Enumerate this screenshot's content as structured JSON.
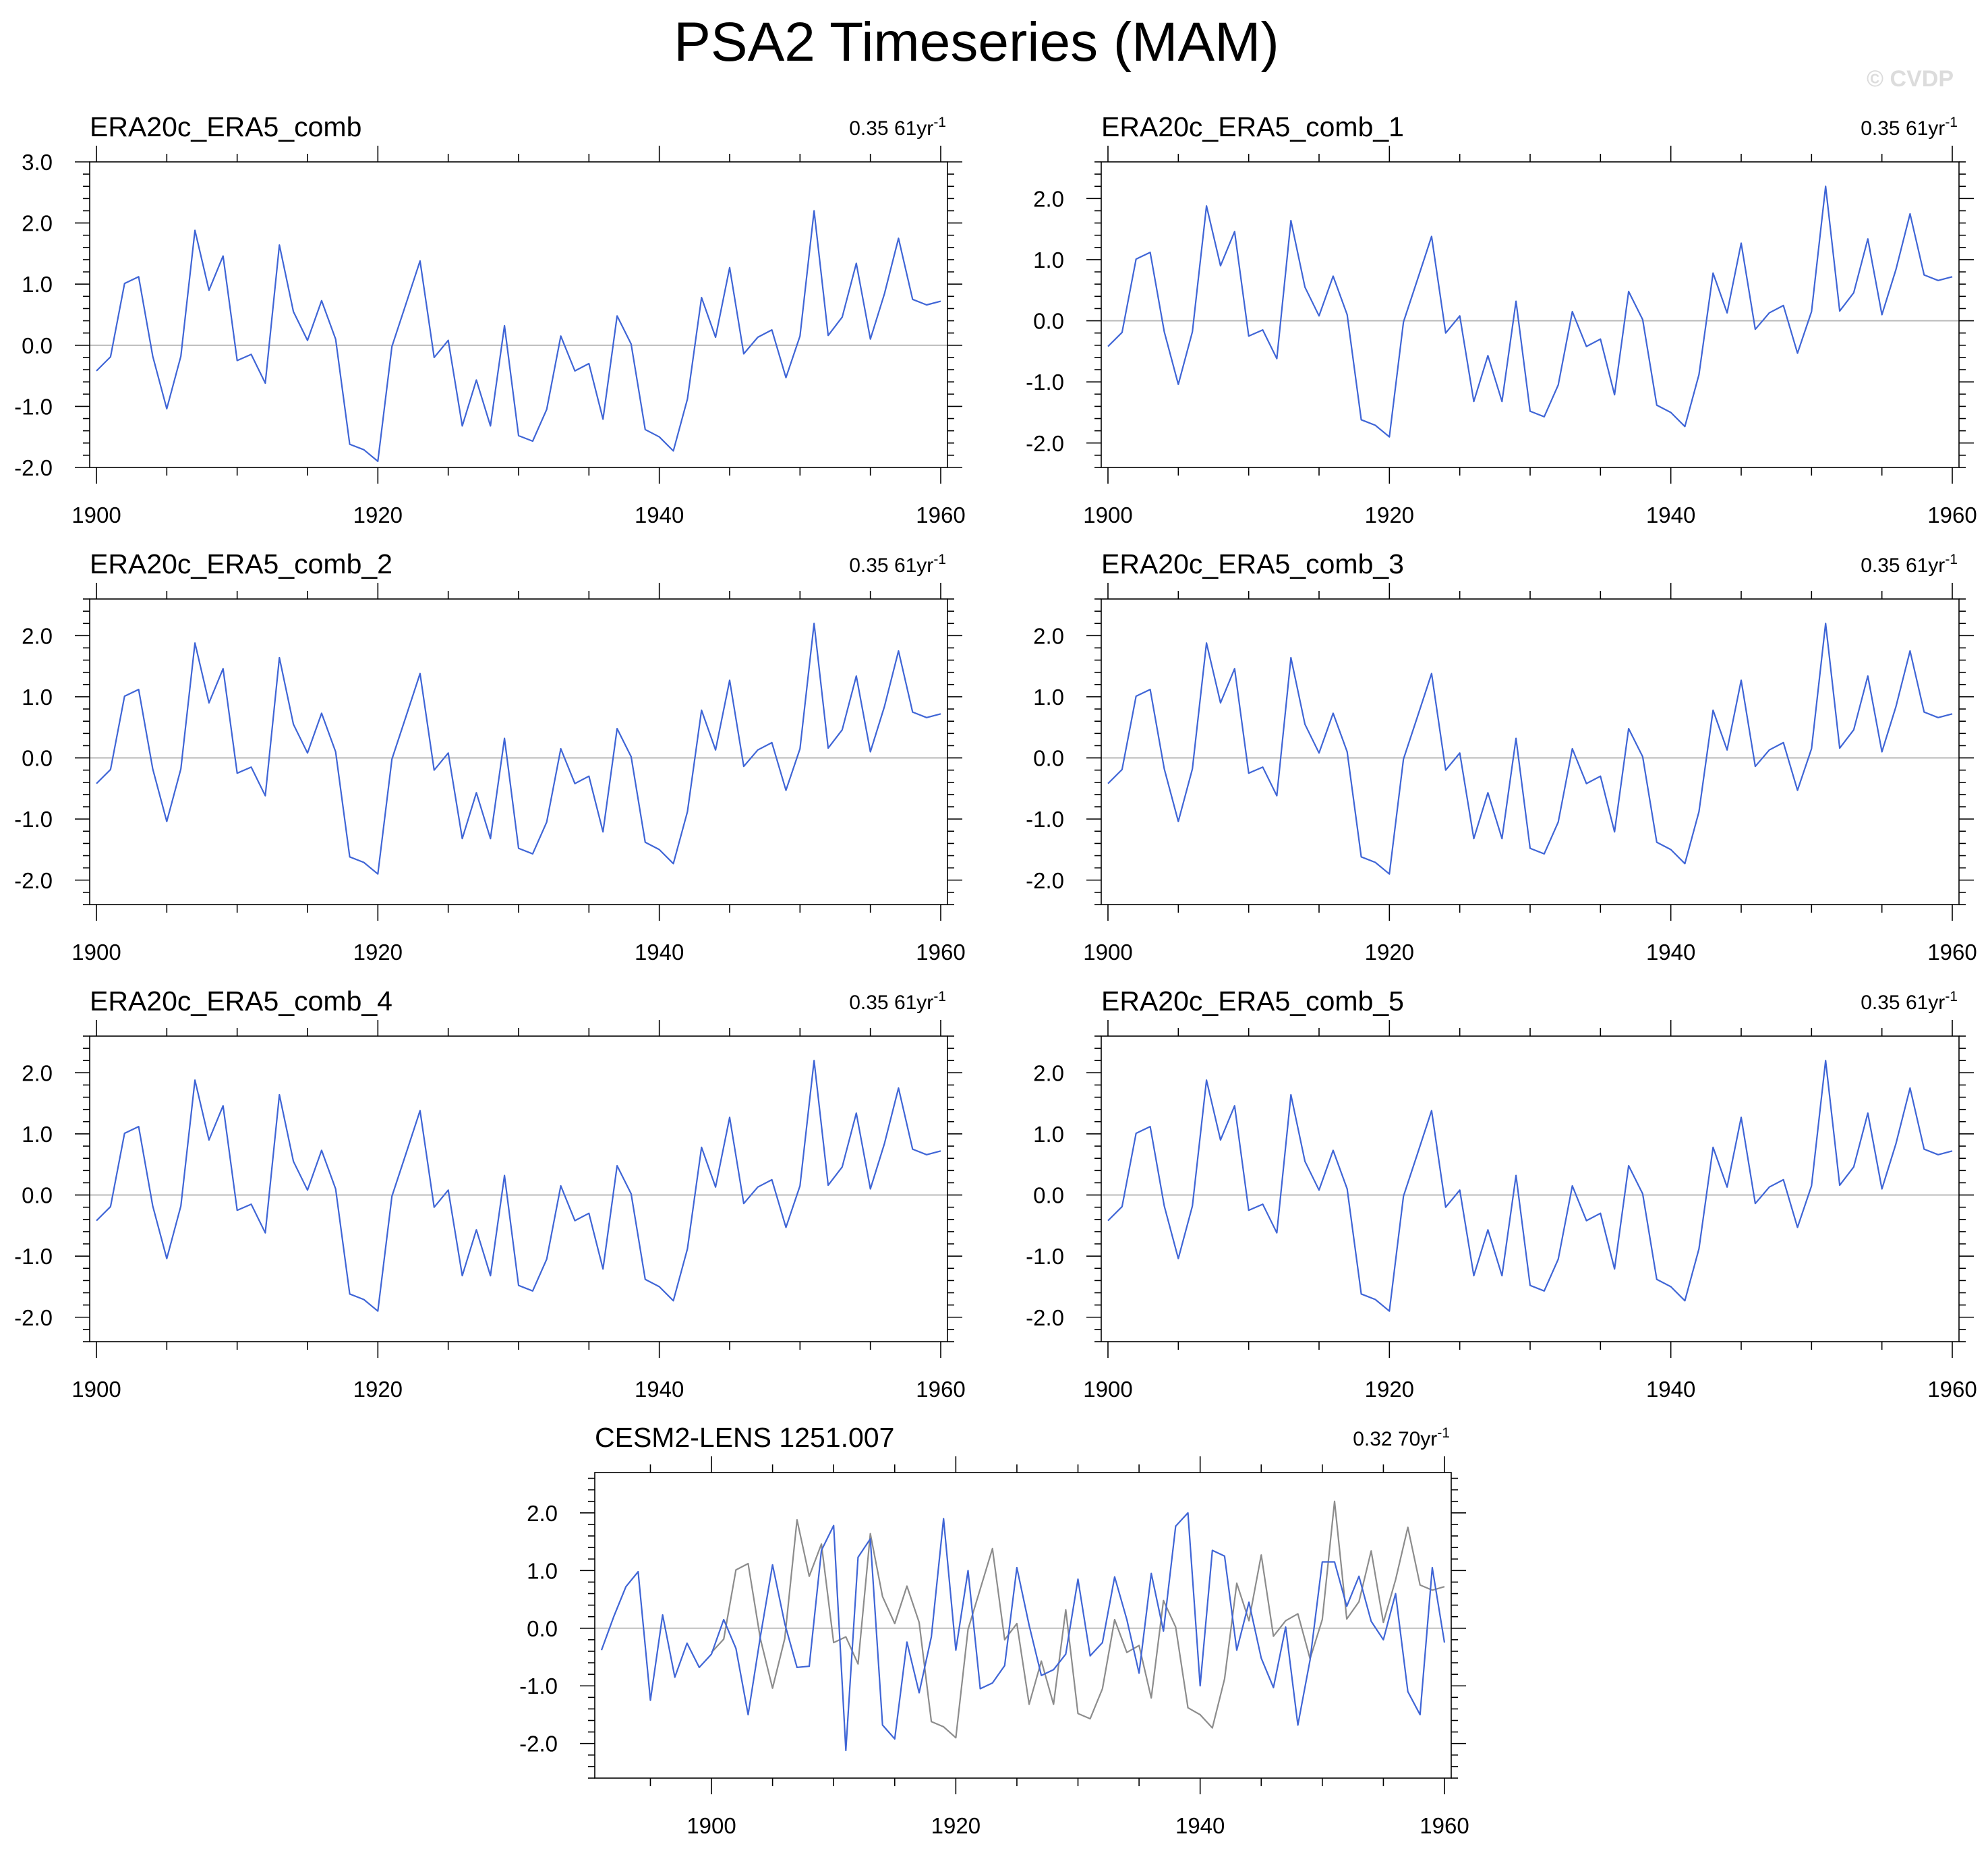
{
  "figure": {
    "title": "PSA2 Timeseries (MAM)",
    "watermark": "© CVDP"
  },
  "colors": {
    "observed_series": "#3f65d6",
    "reference_series": "#8c8c8c",
    "zero_line": "#b4b4b4"
  },
  "chart_data": [
    {
      "type": "line",
      "title": "ERA20c_ERA5_comb",
      "trend": {
        "value": "0.35",
        "period": "61yr",
        "exponent": "-1"
      },
      "xlim": [
        1900,
        1960
      ],
      "ylim": [
        -2,
        3
      ],
      "xticks": [
        "1900",
        "1920",
        "1940",
        "1960"
      ],
      "yticks": [
        "3.0",
        "2.0",
        "1.0",
        "0.0",
        "-1.0",
        "-2.0"
      ],
      "grid": false,
      "x": [
        1900,
        1901,
        1902,
        1903,
        1904,
        1905,
        1906,
        1907,
        1908,
        1909,
        1910,
        1911,
        1912,
        1913,
        1914,
        1915,
        1916,
        1917,
        1918,
        1919,
        1920,
        1921,
        1922,
        1923,
        1924,
        1925,
        1926,
        1927,
        1928,
        1929,
        1930,
        1931,
        1932,
        1933,
        1934,
        1935,
        1936,
        1937,
        1938,
        1939,
        1940,
        1941,
        1942,
        1943,
        1944,
        1945,
        1946,
        1947,
        1948,
        1949,
        1950,
        1951,
        1952,
        1953,
        1954,
        1955,
        1956,
        1957,
        1958,
        1959,
        1960
      ],
      "series": [
        {
          "values": [
            -0.42,
            -0.19,
            1.01,
            1.12,
            -0.18,
            -1.04,
            -0.18,
            1.88,
            0.9,
            1.46,
            -0.25,
            -0.15,
            -0.62,
            1.64,
            0.55,
            0.08,
            0.73,
            0.1,
            -1.62,
            -1.71,
            -1.9,
            -0.02,
            0.68,
            1.38,
            -0.2,
            0.08,
            -1.32,
            -0.57,
            -1.32,
            0.32,
            -1.48,
            -1.57,
            -1.05,
            0.15,
            -0.42,
            -0.3,
            -1.21,
            0.48,
            0.02,
            -1.38,
            -1.5,
            -1.73,
            -0.88,
            0.78,
            0.13,
            1.27,
            -0.14,
            0.13,
            0.25,
            -0.53,
            0.15,
            2.2,
            0.16,
            0.46,
            1.34,
            0.1,
            0.84,
            1.75,
            0.75,
            0.66,
            0.72
          ]
        }
      ]
    },
    {
      "type": "line",
      "title": "ERA20c_ERA5_comb_1",
      "trend": {
        "value": "0.35",
        "period": "61yr",
        "exponent": "-1"
      },
      "xlim": [
        1900,
        1960
      ],
      "ylim": [
        -2.4,
        2.6
      ],
      "xticks": [
        "1900",
        "1920",
        "1940",
        "1960"
      ],
      "yticks": [
        "2.0",
        "1.0",
        "0.0",
        "-1.0",
        "-2.0"
      ],
      "grid": false,
      "x": [
        1900,
        1901,
        1902,
        1903,
        1904,
        1905,
        1906,
        1907,
        1908,
        1909,
        1910,
        1911,
        1912,
        1913,
        1914,
        1915,
        1916,
        1917,
        1918,
        1919,
        1920,
        1921,
        1922,
        1923,
        1924,
        1925,
        1926,
        1927,
        1928,
        1929,
        1930,
        1931,
        1932,
        1933,
        1934,
        1935,
        1936,
        1937,
        1938,
        1939,
        1940,
        1941,
        1942,
        1943,
        1944,
        1945,
        1946,
        1947,
        1948,
        1949,
        1950,
        1951,
        1952,
        1953,
        1954,
        1955,
        1956,
        1957,
        1958,
        1959,
        1960
      ],
      "series": [
        {
          "values": [
            -0.42,
            -0.19,
            1.01,
            1.12,
            -0.18,
            -1.04,
            -0.18,
            1.88,
            0.9,
            1.46,
            -0.25,
            -0.15,
            -0.62,
            1.64,
            0.55,
            0.08,
            0.73,
            0.1,
            -1.62,
            -1.71,
            -1.9,
            -0.02,
            0.68,
            1.38,
            -0.2,
            0.08,
            -1.32,
            -0.57,
            -1.32,
            0.32,
            -1.48,
            -1.57,
            -1.05,
            0.15,
            -0.42,
            -0.3,
            -1.21,
            0.48,
            0.02,
            -1.38,
            -1.5,
            -1.73,
            -0.88,
            0.78,
            0.13,
            1.27,
            -0.14,
            0.13,
            0.25,
            -0.53,
            0.15,
            2.2,
            0.16,
            0.46,
            1.34,
            0.1,
            0.84,
            1.75,
            0.75,
            0.66,
            0.72
          ]
        }
      ]
    },
    {
      "type": "line",
      "title": "ERA20c_ERA5_comb_2",
      "trend": {
        "value": "0.35",
        "period": "61yr",
        "exponent": "-1"
      },
      "xlim": [
        1900,
        1960
      ],
      "ylim": [
        -2.4,
        2.6
      ],
      "xticks": [
        "1900",
        "1920",
        "1940",
        "1960"
      ],
      "yticks": [
        "2.0",
        "1.0",
        "0.0",
        "-1.0",
        "-2.0"
      ],
      "grid": false,
      "x": [
        1900,
        1901,
        1902,
        1903,
        1904,
        1905,
        1906,
        1907,
        1908,
        1909,
        1910,
        1911,
        1912,
        1913,
        1914,
        1915,
        1916,
        1917,
        1918,
        1919,
        1920,
        1921,
        1922,
        1923,
        1924,
        1925,
        1926,
        1927,
        1928,
        1929,
        1930,
        1931,
        1932,
        1933,
        1934,
        1935,
        1936,
        1937,
        1938,
        1939,
        1940,
        1941,
        1942,
        1943,
        1944,
        1945,
        1946,
        1947,
        1948,
        1949,
        1950,
        1951,
        1952,
        1953,
        1954,
        1955,
        1956,
        1957,
        1958,
        1959,
        1960
      ],
      "series": [
        {
          "values": [
            -0.42,
            -0.19,
            1.01,
            1.12,
            -0.18,
            -1.04,
            -0.18,
            1.88,
            0.9,
            1.46,
            -0.25,
            -0.15,
            -0.62,
            1.64,
            0.55,
            0.08,
            0.73,
            0.1,
            -1.62,
            -1.71,
            -1.9,
            -0.02,
            0.68,
            1.38,
            -0.2,
            0.08,
            -1.32,
            -0.57,
            -1.32,
            0.32,
            -1.48,
            -1.57,
            -1.05,
            0.15,
            -0.42,
            -0.3,
            -1.21,
            0.48,
            0.02,
            -1.38,
            -1.5,
            -1.73,
            -0.88,
            0.78,
            0.13,
            1.27,
            -0.14,
            0.13,
            0.25,
            -0.53,
            0.15,
            2.2,
            0.16,
            0.46,
            1.34,
            0.1,
            0.84,
            1.75,
            0.75,
            0.66,
            0.72
          ]
        }
      ]
    },
    {
      "type": "line",
      "title": "ERA20c_ERA5_comb_3",
      "trend": {
        "value": "0.35",
        "period": "61yr",
        "exponent": "-1"
      },
      "xlim": [
        1900,
        1960
      ],
      "ylim": [
        -2.4,
        2.6
      ],
      "xticks": [
        "1900",
        "1920",
        "1940",
        "1960"
      ],
      "yticks": [
        "2.0",
        "1.0",
        "0.0",
        "-1.0",
        "-2.0"
      ],
      "grid": false,
      "x": [
        1900,
        1901,
        1902,
        1903,
        1904,
        1905,
        1906,
        1907,
        1908,
        1909,
        1910,
        1911,
        1912,
        1913,
        1914,
        1915,
        1916,
        1917,
        1918,
        1919,
        1920,
        1921,
        1922,
        1923,
        1924,
        1925,
        1926,
        1927,
        1928,
        1929,
        1930,
        1931,
        1932,
        1933,
        1934,
        1935,
        1936,
        1937,
        1938,
        1939,
        1940,
        1941,
        1942,
        1943,
        1944,
        1945,
        1946,
        1947,
        1948,
        1949,
        1950,
        1951,
        1952,
        1953,
        1954,
        1955,
        1956,
        1957,
        1958,
        1959,
        1960
      ],
      "series": [
        {
          "values": [
            -0.42,
            -0.19,
            1.01,
            1.12,
            -0.18,
            -1.04,
            -0.18,
            1.88,
            0.9,
            1.46,
            -0.25,
            -0.15,
            -0.62,
            1.64,
            0.55,
            0.08,
            0.73,
            0.1,
            -1.62,
            -1.71,
            -1.9,
            -0.02,
            0.68,
            1.38,
            -0.2,
            0.08,
            -1.32,
            -0.57,
            -1.32,
            0.32,
            -1.48,
            -1.57,
            -1.05,
            0.15,
            -0.42,
            -0.3,
            -1.21,
            0.48,
            0.02,
            -1.38,
            -1.5,
            -1.73,
            -0.88,
            0.78,
            0.13,
            1.27,
            -0.14,
            0.13,
            0.25,
            -0.53,
            0.15,
            2.2,
            0.16,
            0.46,
            1.34,
            0.1,
            0.84,
            1.75,
            0.75,
            0.66,
            0.72
          ]
        }
      ]
    },
    {
      "type": "line",
      "title": "ERA20c_ERA5_comb_4",
      "trend": {
        "value": "0.35",
        "period": "61yr",
        "exponent": "-1"
      },
      "xlim": [
        1900,
        1960
      ],
      "ylim": [
        -2.4,
        2.6
      ],
      "xticks": [
        "1900",
        "1920",
        "1940",
        "1960"
      ],
      "yticks": [
        "2.0",
        "1.0",
        "0.0",
        "-1.0",
        "-2.0"
      ],
      "grid": false,
      "x": [
        1900,
        1901,
        1902,
        1903,
        1904,
        1905,
        1906,
        1907,
        1908,
        1909,
        1910,
        1911,
        1912,
        1913,
        1914,
        1915,
        1916,
        1917,
        1918,
        1919,
        1920,
        1921,
        1922,
        1923,
        1924,
        1925,
        1926,
        1927,
        1928,
        1929,
        1930,
        1931,
        1932,
        1933,
        1934,
        1935,
        1936,
        1937,
        1938,
        1939,
        1940,
        1941,
        1942,
        1943,
        1944,
        1945,
        1946,
        1947,
        1948,
        1949,
        1950,
        1951,
        1952,
        1953,
        1954,
        1955,
        1956,
        1957,
        1958,
        1959,
        1960
      ],
      "series": [
        {
          "values": [
            -0.42,
            -0.19,
            1.01,
            1.12,
            -0.18,
            -1.04,
            -0.18,
            1.88,
            0.9,
            1.46,
            -0.25,
            -0.15,
            -0.62,
            1.64,
            0.55,
            0.08,
            0.73,
            0.1,
            -1.62,
            -1.71,
            -1.9,
            -0.02,
            0.68,
            1.38,
            -0.2,
            0.08,
            -1.32,
            -0.57,
            -1.32,
            0.32,
            -1.48,
            -1.57,
            -1.05,
            0.15,
            -0.42,
            -0.3,
            -1.21,
            0.48,
            0.02,
            -1.38,
            -1.5,
            -1.73,
            -0.88,
            0.78,
            0.13,
            1.27,
            -0.14,
            0.13,
            0.25,
            -0.53,
            0.15,
            2.2,
            0.16,
            0.46,
            1.34,
            0.1,
            0.84,
            1.75,
            0.75,
            0.66,
            0.72
          ]
        }
      ]
    },
    {
      "type": "line",
      "title": "ERA20c_ERA5_comb_5",
      "trend": {
        "value": "0.35",
        "period": "61yr",
        "exponent": "-1"
      },
      "xlim": [
        1900,
        1960
      ],
      "ylim": [
        -2.4,
        2.6
      ],
      "xticks": [
        "1900",
        "1920",
        "1940",
        "1960"
      ],
      "yticks": [
        "2.0",
        "1.0",
        "0.0",
        "-1.0",
        "-2.0"
      ],
      "grid": false,
      "x": [
        1900,
        1901,
        1902,
        1903,
        1904,
        1905,
        1906,
        1907,
        1908,
        1909,
        1910,
        1911,
        1912,
        1913,
        1914,
        1915,
        1916,
        1917,
        1918,
        1919,
        1920,
        1921,
        1922,
        1923,
        1924,
        1925,
        1926,
        1927,
        1928,
        1929,
        1930,
        1931,
        1932,
        1933,
        1934,
        1935,
        1936,
        1937,
        1938,
        1939,
        1940,
        1941,
        1942,
        1943,
        1944,
        1945,
        1946,
        1947,
        1948,
        1949,
        1950,
        1951,
        1952,
        1953,
        1954,
        1955,
        1956,
        1957,
        1958,
        1959,
        1960
      ],
      "series": [
        {
          "values": [
            -0.42,
            -0.19,
            1.01,
            1.12,
            -0.18,
            -1.04,
            -0.18,
            1.88,
            0.9,
            1.46,
            -0.25,
            -0.15,
            -0.62,
            1.64,
            0.55,
            0.08,
            0.73,
            0.1,
            -1.62,
            -1.71,
            -1.9,
            -0.02,
            0.68,
            1.38,
            -0.2,
            0.08,
            -1.32,
            -0.57,
            -1.32,
            0.32,
            -1.48,
            -1.57,
            -1.05,
            0.15,
            -0.42,
            -0.3,
            -1.21,
            0.48,
            0.02,
            -1.38,
            -1.5,
            -1.73,
            -0.88,
            0.78,
            0.13,
            1.27,
            -0.14,
            0.13,
            0.25,
            -0.53,
            0.15,
            2.2,
            0.16,
            0.46,
            1.34,
            0.1,
            0.84,
            1.75,
            0.75,
            0.66,
            0.72
          ]
        }
      ]
    },
    {
      "type": "line",
      "title": "CESM2-LENS 1251.007",
      "trend": {
        "value": "0.32",
        "period": "70yr",
        "exponent": "-1"
      },
      "xlim": [
        1891,
        1960
      ],
      "ylim": [
        -2.6,
        2.7
      ],
      "xticks": [
        "1900",
        "1920",
        "1940",
        "1960"
      ],
      "yticks": [
        "2.0",
        "1.0",
        "0.0",
        "-1.0",
        "-2.0"
      ],
      "grid": false,
      "x": [
        1891,
        1892,
        1893,
        1894,
        1895,
        1896,
        1897,
        1898,
        1899,
        1900,
        1901,
        1902,
        1903,
        1904,
        1905,
        1906,
        1907,
        1908,
        1909,
        1910,
        1911,
        1912,
        1913,
        1914,
        1915,
        1916,
        1917,
        1918,
        1919,
        1920,
        1921,
        1922,
        1923,
        1924,
        1925,
        1926,
        1927,
        1928,
        1929,
        1930,
        1931,
        1932,
        1933,
        1934,
        1935,
        1936,
        1937,
        1938,
        1939,
        1940,
        1941,
        1942,
        1943,
        1944,
        1945,
        1946,
        1947,
        1948,
        1949,
        1950,
        1951,
        1952,
        1953,
        1954,
        1955,
        1956,
        1957,
        1958,
        1959,
        1960
      ],
      "series": [
        {
          "values": [
            -0.38,
            0.2,
            0.72,
            0.98,
            -1.25,
            0.23,
            -0.85,
            -0.26,
            -0.68,
            -0.45,
            0.15,
            -0.35,
            -1.5,
            -0.15,
            1.1,
            0.08,
            -0.68,
            -0.66,
            1.35,
            1.78,
            -2.12,
            1.23,
            1.55,
            -1.68,
            -1.92,
            -0.24,
            -1.12,
            -0.15,
            1.9,
            -0.38,
            1.0,
            -1.05,
            -0.95,
            -0.65,
            1.05,
            0.05,
            -0.82,
            -0.72,
            -0.45,
            0.85,
            -0.48,
            -0.25,
            0.89,
            0.15,
            -0.78,
            0.95,
            -0.05,
            1.77,
            2.0,
            -1.0,
            1.35,
            1.25,
            -0.38,
            0.45,
            -0.52,
            -1.03,
            0.02,
            -1.68,
            -0.55,
            1.15,
            1.15,
            0.38,
            0.9,
            0.12,
            -0.2,
            0.6,
            -1.1,
            -1.5,
            1.05,
            -0.25
          ]
        },
        {
          "values": [
            null,
            null,
            null,
            null,
            null,
            null,
            null,
            null,
            null,
            -0.42,
            -0.19,
            1.01,
            1.12,
            -0.18,
            -1.04,
            -0.18,
            1.88,
            0.9,
            1.46,
            -0.25,
            -0.15,
            -0.62,
            1.64,
            0.55,
            0.08,
            0.73,
            0.1,
            -1.62,
            -1.71,
            -1.9,
            -0.02,
            0.68,
            1.38,
            -0.2,
            0.08,
            -1.32,
            -0.57,
            -1.32,
            0.32,
            -1.48,
            -1.57,
            -1.05,
            0.15,
            -0.42,
            -0.3,
            -1.21,
            0.48,
            0.02,
            -1.38,
            -1.5,
            -1.73,
            -0.88,
            0.78,
            0.13,
            1.27,
            -0.14,
            0.13,
            0.25,
            -0.53,
            0.15,
            2.2,
            0.16,
            0.46,
            1.34,
            0.1,
            0.84,
            1.75,
            0.75,
            0.66,
            0.72
          ]
        }
      ]
    }
  ]
}
